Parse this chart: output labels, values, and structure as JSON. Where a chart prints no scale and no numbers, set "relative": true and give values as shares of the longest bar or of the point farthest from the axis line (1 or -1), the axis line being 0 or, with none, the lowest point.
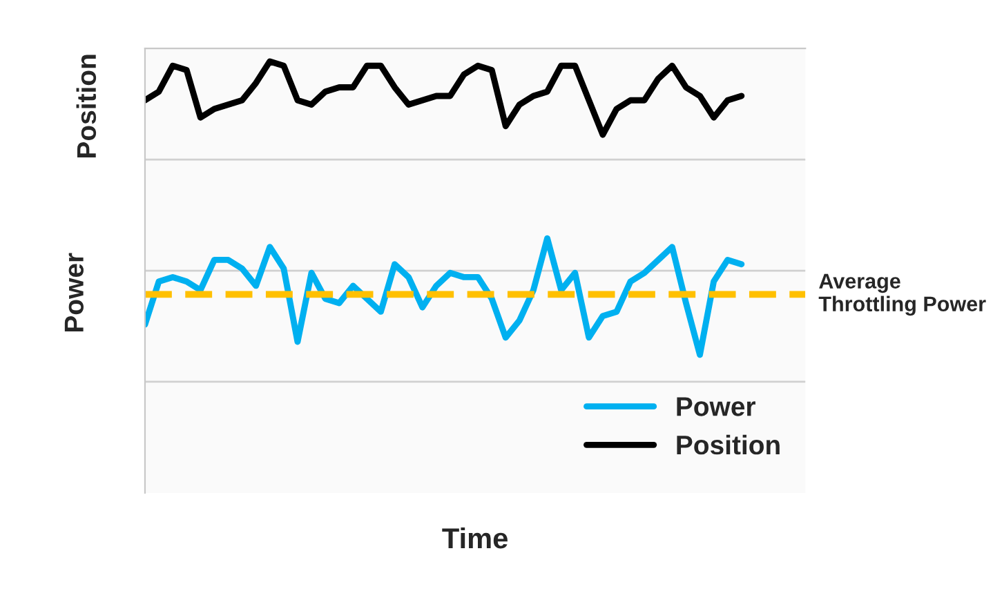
{
  "chart_data": {
    "type": "line",
    "relative": true,
    "xlabel": "Time",
    "ylabel": "Power",
    "annotations": [
      "Position"
    ],
    "categories": [
      null,
      null,
      null,
      null,
      null,
      null,
      null,
      null,
      null,
      null,
      null,
      null,
      null,
      null,
      null,
      null,
      null,
      null,
      null,
      null,
      null,
      null,
      null,
      null,
      null,
      null,
      null,
      null,
      null,
      null,
      null,
      null,
      null,
      null,
      null,
      null,
      null,
      null,
      null,
      null,
      null,
      null,
      null,
      null
    ],
    "series": [
      {
        "name": "Power",
        "color": "#00b0f0",
        "values": [
          0.39,
          0.49,
          0.5,
          0.49,
          0.47,
          0.54,
          0.54,
          0.52,
          0.48,
          0.57,
          0.52,
          0.35,
          0.51,
          0.45,
          0.44,
          0.48,
          0.45,
          0.42,
          0.53,
          0.5,
          0.43,
          0.48,
          0.51,
          0.5,
          0.5,
          0.45,
          0.36,
          0.4,
          0.47,
          0.59,
          0.47,
          0.51,
          0.36,
          0.41,
          0.42,
          0.49,
          0.51,
          0.54,
          0.57,
          0.44,
          0.32,
          0.49,
          0.54,
          0.53
        ]
      },
      {
        "name": "Position",
        "color": "#000000",
        "values": [
          0.91,
          0.93,
          0.99,
          0.98,
          0.87,
          0.89,
          0.9,
          0.91,
          0.95,
          1.0,
          0.99,
          0.91,
          0.9,
          0.93,
          0.94,
          0.94,
          0.99,
          0.99,
          0.94,
          0.9,
          0.91,
          0.92,
          0.92,
          0.97,
          0.99,
          0.98,
          0.85,
          0.9,
          0.92,
          0.93,
          0.99,
          0.99,
          0.91,
          0.83,
          0.89,
          0.91,
          0.91,
          0.96,
          0.99,
          0.94,
          0.92,
          0.87,
          0.91,
          0.92
        ]
      }
    ],
    "ref_lines": [
      {
        "axis": "y",
        "value": 0.46,
        "label": "Average Throttling Power",
        "color": "#ffc000",
        "line_style": "dashed"
      }
    ],
    "grid": "y",
    "legend": "bottom right",
    "line_style": "solid"
  }
}
